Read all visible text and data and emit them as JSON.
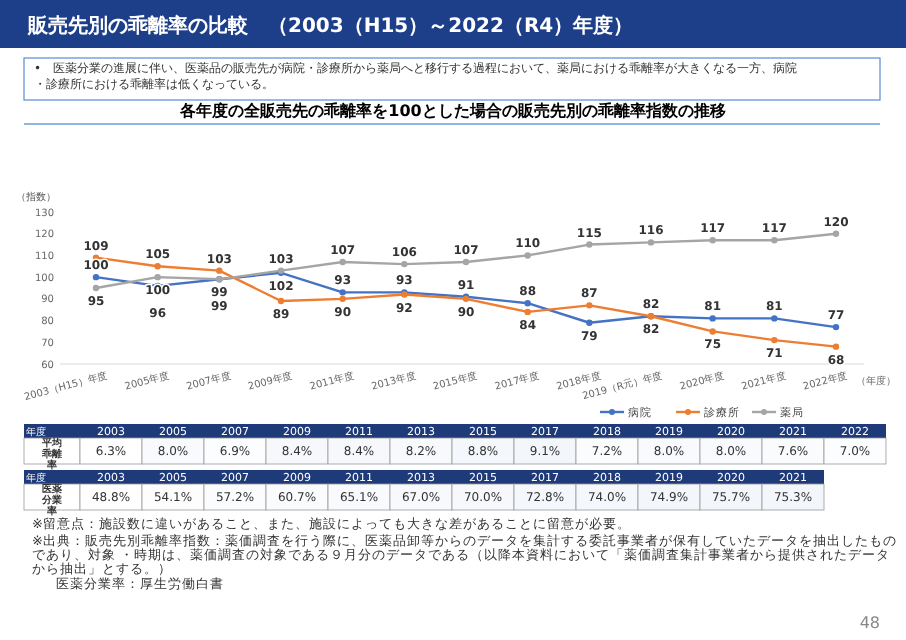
{
  "chart_data": [
    {
      "type": "line",
      "title": "販売先別の乖離率の比較　（2003（H15）～2022（R4）年度）",
      "subtitle": "各年度の全販売先の乖離率を100とした場合の販売先別の乖離率指数の推移",
      "ylabel": "（指数）",
      "xlabel": "（年度）",
      "annotations": [
        "•　医薬分業の進展に伴い、医薬品の販売先が病院・診療所から薬局へと移行する過程において、薬局における乖離率が大きくなる一方、病院・診療所における乖離率は低くなっている。"
      ],
      "categories": [
        "2003（H15）年度",
        "2005年度",
        "2007年度",
        "2009年度",
        "2011年度",
        "2013年度",
        "2015年度",
        "2017年度",
        "2018年度",
        "2019（R元）年度",
        "2020年度",
        "2021年度",
        "2022年度"
      ],
      "series": [
        {
          "name": "病院",
          "color": "#4472c4",
          "values": [
            100,
            96,
            99,
            102,
            93,
            93,
            91,
            88,
            79,
            82,
            81,
            81,
            77
          ]
        },
        {
          "name": "診療所",
          "color": "#ed7d31",
          "values": [
            109,
            105,
            103,
            89,
            90,
            92,
            90,
            84,
            87,
            82,
            75,
            71,
            68
          ]
        },
        {
          "name": "薬局",
          "color": "#a5a5a5",
          "values": [
            95,
            100,
            99,
            103,
            107,
            106,
            107,
            110,
            115,
            116,
            117,
            117,
            120
          ]
        }
      ],
      "ylim": [
        60,
        130
      ],
      "yticks": [
        60,
        70,
        80,
        90,
        100,
        110,
        120,
        130
      ],
      "grid": false,
      "legend": "bottom right",
      "marker": "circle",
      "data_labels": true
    },
    {
      "type": "heatmap",
      "xlabel": "年度",
      "categories": [
        "2003",
        "2005",
        "2007",
        "2009",
        "2011",
        "2013",
        "2015",
        "2017",
        "2018",
        "2019",
        "2020",
        "2021",
        "2022"
      ],
      "y_categories": [
        "平均乖離率"
      ],
      "cells": [
        [
          6.3,
          8.0,
          6.9,
          8.4,
          8.4,
          8.2,
          8.8,
          9.1,
          7.2,
          8.0,
          8.0,
          7.6,
          7.0
        ]
      ],
      "cell_labels": [
        [
          "6.3%",
          "8.0%",
          "6.9%",
          "8.4%",
          "8.4%",
          "8.2%",
          "8.8%",
          "9.1%",
          "7.2%",
          "8.0%",
          "8.0%",
          "7.6%",
          "7.0%"
        ]
      ]
    },
    {
      "type": "heatmap",
      "xlabel": "年度",
      "categories": [
        "2003",
        "2005",
        "2007",
        "2009",
        "2011",
        "2013",
        "2015",
        "2017",
        "2018",
        "2019",
        "2020",
        "2021"
      ],
      "y_categories": [
        "医薬分業率"
      ],
      "cells": [
        [
          48.8,
          54.1,
          57.2,
          60.7,
          65.1,
          67.0,
          70.0,
          72.8,
          74.0,
          74.9,
          75.7,
          75.3
        ]
      ],
      "cell_labels": [
        [
          "48.8%",
          "54.1%",
          "57.2%",
          "60.7%",
          "65.1%",
          "67.0%",
          "70.0%",
          "72.8%",
          "74.0%",
          "74.9%",
          "75.7%",
          "75.3%"
        ]
      ],
      "annotations": [
        "※留意点：施設数に違いがあること、また、施設によっても大きな差があることに留意が必要。",
        "※出典：販売先別乖離率指数：薬価調査を行う際に、医薬品卸等からのデータを集計する委託事業者が保有していたデータを抽出したものであり、対象 ・時期は、薬価調査の対象である９月分のデータである（以降本資料において「薬価調査集計事業者から提供されたデータから抽出」とする。）",
        "医薬分業率：厚生労働白書",
        "48"
      ]
    }
  ]
}
